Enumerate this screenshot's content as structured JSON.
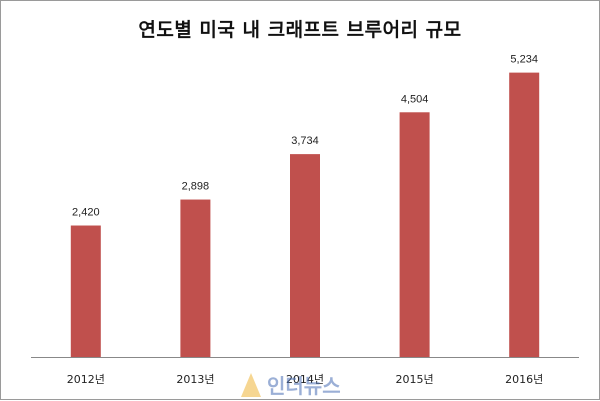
{
  "chart_data": {
    "type": "bar",
    "title": "연도별 미국 내 크래프트 브루어리 규모",
    "categories": [
      "2012년",
      "2013년",
      "2014년",
      "2015년",
      "2016년"
    ],
    "values": [
      2420,
      2898,
      3734,
      4504,
      5234
    ],
    "value_labels": [
      "2,420",
      "2,898",
      "3,734",
      "4,504",
      "5,234"
    ],
    "ylim": [
      0,
      6000
    ],
    "grid": false,
    "bar_color": "#c0504d"
  },
  "watermark": {
    "text": "인더뉴스",
    "color": "#4a6fb5"
  }
}
